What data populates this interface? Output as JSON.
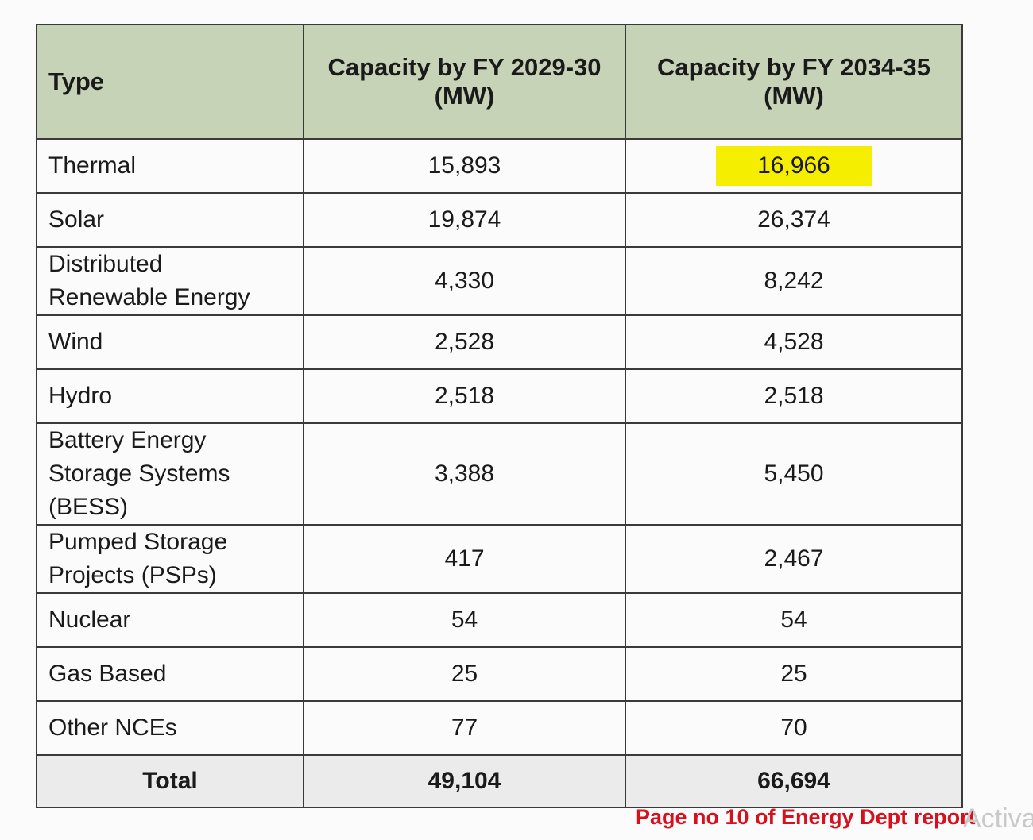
{
  "table": {
    "headers": {
      "type": "Type",
      "fy2029_line1": "Capacity by FY 2029-30",
      "fy2029_line2": "(MW)",
      "fy2034_line1": "Capacity by FY 2034-35",
      "fy2034_line2": "(MW)"
    },
    "rows": [
      {
        "type": "Thermal",
        "fy2029": "15,893",
        "fy2034": "16,966"
      },
      {
        "type": "Solar",
        "fy2029": "19,874",
        "fy2034": "26,374"
      },
      {
        "type_line1": "Distributed",
        "type_line2": "Renewable Energy",
        "fy2029": "4,330",
        "fy2034": "8,242"
      },
      {
        "type": "Wind",
        "fy2029": "2,528",
        "fy2034": "4,528"
      },
      {
        "type": "Hydro",
        "fy2029": "2,518",
        "fy2034": "2,518"
      },
      {
        "type_line1": "Battery Energy",
        "type_line2": "Storage Systems",
        "type_line3": "(BESS)",
        "fy2029": "3,388",
        "fy2034": "5,450"
      },
      {
        "type_line1": "Pumped Storage",
        "type_line2": "Projects (PSPs)",
        "fy2029": "417",
        "fy2034": "2,467"
      },
      {
        "type": "Nuclear",
        "fy2029": "54",
        "fy2034": "54"
      },
      {
        "type": "Gas Based",
        "fy2029": "25",
        "fy2034": "25"
      },
      {
        "type": "Other NCEs",
        "fy2029": "77",
        "fy2034": "70"
      }
    ],
    "total": {
      "label": "Total",
      "fy2029": "49,104",
      "fy2034": "66,694"
    }
  },
  "colors": {
    "header_bg": "#c7d3b7",
    "highlight": "#f6ee00",
    "footnote": "#d80f1c"
  },
  "footnote": "Page no 10 of Energy Dept report",
  "watermark": "Activa"
}
